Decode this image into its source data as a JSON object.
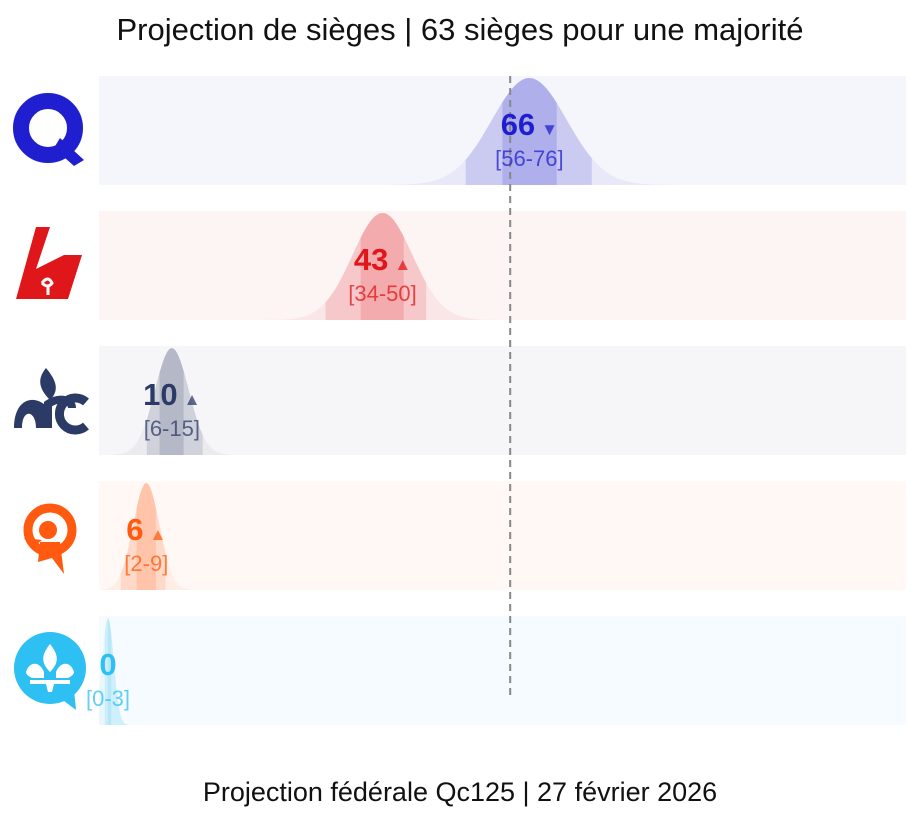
{
  "chart_data": {
    "type": "density",
    "title": "Projection de sièges | 63 sièges pour une majorité",
    "footer": "Projection fédérale Qc125 | 27 février 2026",
    "majority_threshold": 63,
    "x_range": [
      0,
      125
    ],
    "series": [
      {
        "name": "CAQ",
        "logo": "caq-logo",
        "color": "#1f1fcf",
        "band_color": "#f5f5fc",
        "projection": 66,
        "low": 56,
        "high": 76,
        "trend": "down",
        "trend_symbol": "▼",
        "interval_label": "[56-76]"
      },
      {
        "name": "PLQ",
        "logo": "plq-logo",
        "color": "#e0171a",
        "band_color": "#fdf4f4",
        "projection": 43,
        "low": 34,
        "high": 50,
        "trend": "up",
        "trend_symbol": "▲",
        "interval_label": "[34-50]"
      },
      {
        "name": "PCQ",
        "logo": "pcq-logo",
        "color": "#2c3a66",
        "band_color": "#f6f6f8",
        "projection": 10,
        "low": 6,
        "high": 15,
        "trend": "up",
        "trend_symbol": "▲",
        "interval_label": "[6-15]"
      },
      {
        "name": "QS",
        "logo": "qs-logo",
        "color": "#ff5a0f",
        "band_color": "#fff8f4",
        "projection": 6,
        "low": 2,
        "high": 9,
        "trend": "up",
        "trend_symbol": "▲",
        "interval_label": "[2-9]"
      },
      {
        "name": "PQ",
        "logo": "pq-logo",
        "color": "#2fc0f3",
        "band_color": "#f5fbfe",
        "projection": 0,
        "low": 0,
        "high": 3,
        "trend": "none",
        "trend_symbol": "",
        "interval_label": "[0-3]"
      }
    ]
  }
}
